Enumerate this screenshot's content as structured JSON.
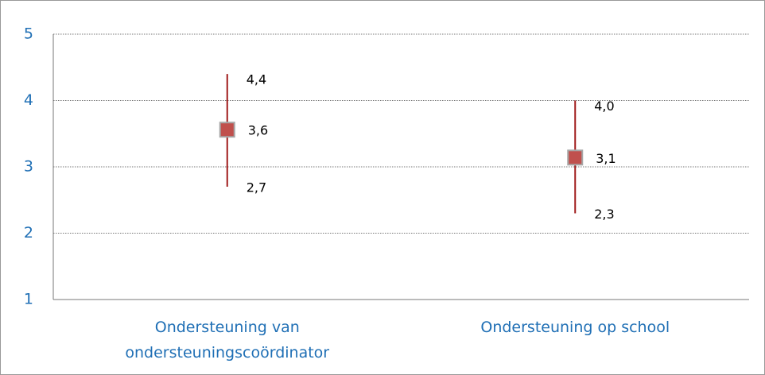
{
  "chart_data": {
    "type": "high-low",
    "categories": [
      "Ondersteuning van ondersteuningscoördinator",
      "Ondersteuning op school"
    ],
    "values": [
      3.56,
      3.14
    ],
    "value_labels": [
      "3,6",
      "3,1"
    ],
    "high": [
      4.4,
      4.0
    ],
    "high_labels": [
      "4,4",
      "4,0"
    ],
    "low": [
      2.7,
      2.3
    ],
    "low_labels": [
      "2,7",
      "2,3"
    ],
    "line_color": "#a01c1c",
    "marker_color": "#c0504d",
    "ylim": [
      1,
      5
    ],
    "yticks": [
      1,
      2,
      3,
      4,
      5
    ],
    "grid": true
  }
}
